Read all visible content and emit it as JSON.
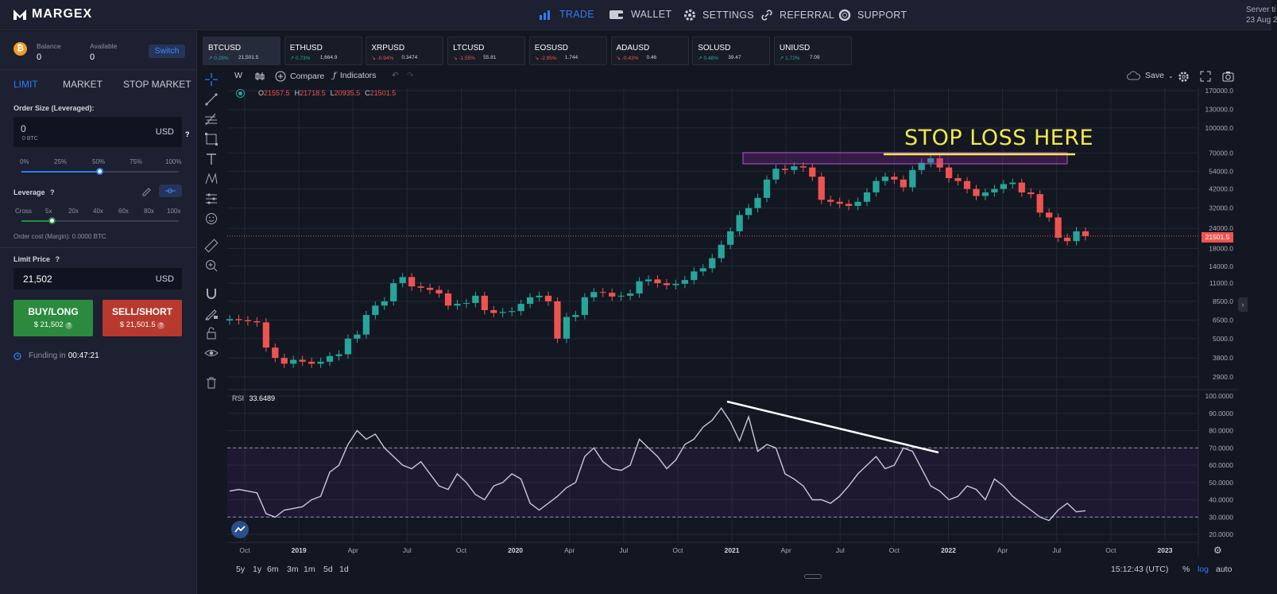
{
  "nav": {
    "logo": "MARGEX",
    "items": [
      {
        "label": "TRADE",
        "icon": "bar-chart-icon"
      },
      {
        "label": "WALLET",
        "icon": "wallet-icon"
      },
      {
        "label": "SETTINGS",
        "icon": "gear-icon"
      },
      {
        "label": "REFERRAL",
        "icon": "link-icon"
      },
      {
        "label": "SUPPORT",
        "icon": "lifebuoy-icon"
      }
    ],
    "server_label": "Server ti",
    "server_date": "23 Aug 2"
  },
  "account": {
    "coin_symbol": "₿",
    "balance_label": "Balance",
    "balance_value": "0",
    "available_label": "Available",
    "available_value": "0",
    "switch_label": "Switch"
  },
  "order_tabs": [
    "LIMIT",
    "MARKET",
    "STOP MARKET"
  ],
  "order_form": {
    "size_label": "Order Size (Leveraged):",
    "size_value": "0",
    "size_sub": "0 BTC",
    "size_unit": "USD",
    "size_help": "?",
    "size_marks": [
      "0%",
      "25%",
      "50%",
      "75%",
      "100%"
    ],
    "size_slider_fraction": 0.5,
    "leverage_label": "Leverage",
    "leverage_help": "?",
    "leverage_marks": [
      "Cross",
      "5x",
      "20x",
      "40x",
      "60x",
      "80x",
      "100x"
    ],
    "leverage_selected": "5x",
    "order_cost": "Order cost (Margin): 0.0000 BTC",
    "limit_label": "Limit Price",
    "limit_help": "?",
    "limit_value": "21,502",
    "limit_unit": "USD",
    "buy_label": "BUY/LONG",
    "buy_price": "$ 21,502",
    "sell_label": "SELL/SHORT",
    "sell_price": "$ 21,501.5",
    "funding_label": "Funding in",
    "funding_time": "00:47:21"
  },
  "tickers": [
    {
      "symbol": "BTCUSD",
      "change": "0.28%",
      "price": "21,501.5",
      "dir": "up"
    },
    {
      "symbol": "ETHUSD",
      "change": "0.73%",
      "price": "1,664.9",
      "dir": "up"
    },
    {
      "symbol": "XRPUSD",
      "change": "-0.94%",
      "price": "0.3474",
      "dir": "dn"
    },
    {
      "symbol": "LTCUSD",
      "change": "-1.55%",
      "price": "55.81",
      "dir": "dn"
    },
    {
      "symbol": "EOSUSD",
      "change": "-2.95%",
      "price": "1.744",
      "dir": "dn"
    },
    {
      "symbol": "ADAUSD",
      "change": "-0.43%",
      "price": "0.46",
      "dir": "dn"
    },
    {
      "symbol": "SOLUSD",
      "change": "0.48%",
      "price": "39.47",
      "dir": "up"
    },
    {
      "symbol": "UNIUSD",
      "change": "1.72%",
      "price": "7.09",
      "dir": "up"
    }
  ],
  "chart_toolbar": {
    "interval": "W",
    "compare": "Compare",
    "indicators": "Indicators",
    "save": "Save"
  },
  "ohlc": {
    "o": "21557.5",
    "h": "21718.5",
    "l": "20935.5",
    "c": "21501.5"
  },
  "annotation": "STOP LOSS HERE",
  "last_price_label": "21501.5",
  "price_axis": [
    "170000.0",
    "130000.0",
    "100000.0",
    "70000.0",
    "54000.0",
    "42000.0",
    "32000.0",
    "24000.0",
    "18000.0",
    "14000.0",
    "11000.0",
    "8500.0",
    "6500.0",
    "5000.0",
    "3800.0",
    "2900.0"
  ],
  "rsi": {
    "label": "RSI",
    "value": "33.6489"
  },
  "rsi_axis": [
    "100.0000",
    "90.0000",
    "80.0000",
    "70.0000",
    "60.0000",
    "50.0000",
    "40.0000",
    "30.0000",
    "20.0000"
  ],
  "time_axis": [
    "Oct",
    "2019",
    "Apr",
    "Jul",
    "Oct",
    "2020",
    "Apr",
    "Jul",
    "Oct",
    "2021",
    "Apr",
    "Jul",
    "Oct",
    "2022",
    "Apr",
    "Jul",
    "Oct",
    "2023"
  ],
  "ranges": [
    "5y",
    "1y",
    "6m",
    "3m",
    "1m",
    "5d",
    "1d"
  ],
  "clock": "15:12:43 (UTC)",
  "scale_opts": [
    "%",
    "log",
    "auto"
  ],
  "colors": {
    "up": "#26a69a",
    "down": "#ef5350",
    "accent": "#2f7cf6",
    "annotation": "#f5e94a"
  },
  "chart_data": {
    "type": "candlestick",
    "log_scale": true,
    "weekly_close": [
      6600,
      6500,
      6400,
      6300,
      4400,
      3800,
      3500,
      3700,
      3600,
      3500,
      3600,
      3900,
      4000,
      5000,
      5300,
      7000,
      8000,
      8500,
      11000,
      12000,
      10500,
      10300,
      10000,
      9500,
      8000,
      8200,
      8300,
      9200,
      7500,
      7200,
      7300,
      7400,
      8200,
      9000,
      9200,
      8500,
      5000,
      6800,
      7000,
      9000,
      9700,
      9600,
      9100,
      9200,
      9500,
      11300,
      11600,
      11000,
      10700,
      10900,
      11500,
      13000,
      13600,
      15700,
      19000,
      23000,
      29000,
      32000,
      37000,
      48000,
      56000,
      55000,
      58000,
      57000,
      50000,
      36000,
      35000,
      34000,
      33000,
      35000,
      40000,
      47000,
      50000,
      48000,
      43000,
      55000,
      61000,
      65000,
      57000,
      49000,
      47000,
      42000,
      38000,
      40000,
      42000,
      45000,
      46000,
      40000,
      39000,
      30000,
      28000,
      21000,
      20000,
      23000,
      21500
    ],
    "rsi_values": [
      45,
      46,
      45,
      44,
      32,
      30,
      34,
      35,
      36,
      40,
      42,
      56,
      60,
      72,
      80,
      75,
      78,
      70,
      65,
      60,
      58,
      62,
      55,
      48,
      46,
      55,
      50,
      43,
      40,
      48,
      50,
      55,
      52,
      38,
      34,
      38,
      42,
      47,
      50,
      65,
      70,
      62,
      58,
      57,
      60,
      75,
      70,
      65,
      58,
      63,
      72,
      75,
      82,
      86,
      93,
      85,
      74,
      88,
      68,
      72,
      70,
      55,
      52,
      48,
      40,
      40,
      38,
      42,
      48,
      55,
      60,
      65,
      58,
      60,
      70,
      68,
      58,
      48,
      45,
      40,
      42,
      48,
      46,
      40,
      52,
      48,
      42,
      38,
      34,
      30,
      28,
      34,
      38,
      33,
      33.65
    ]
  }
}
